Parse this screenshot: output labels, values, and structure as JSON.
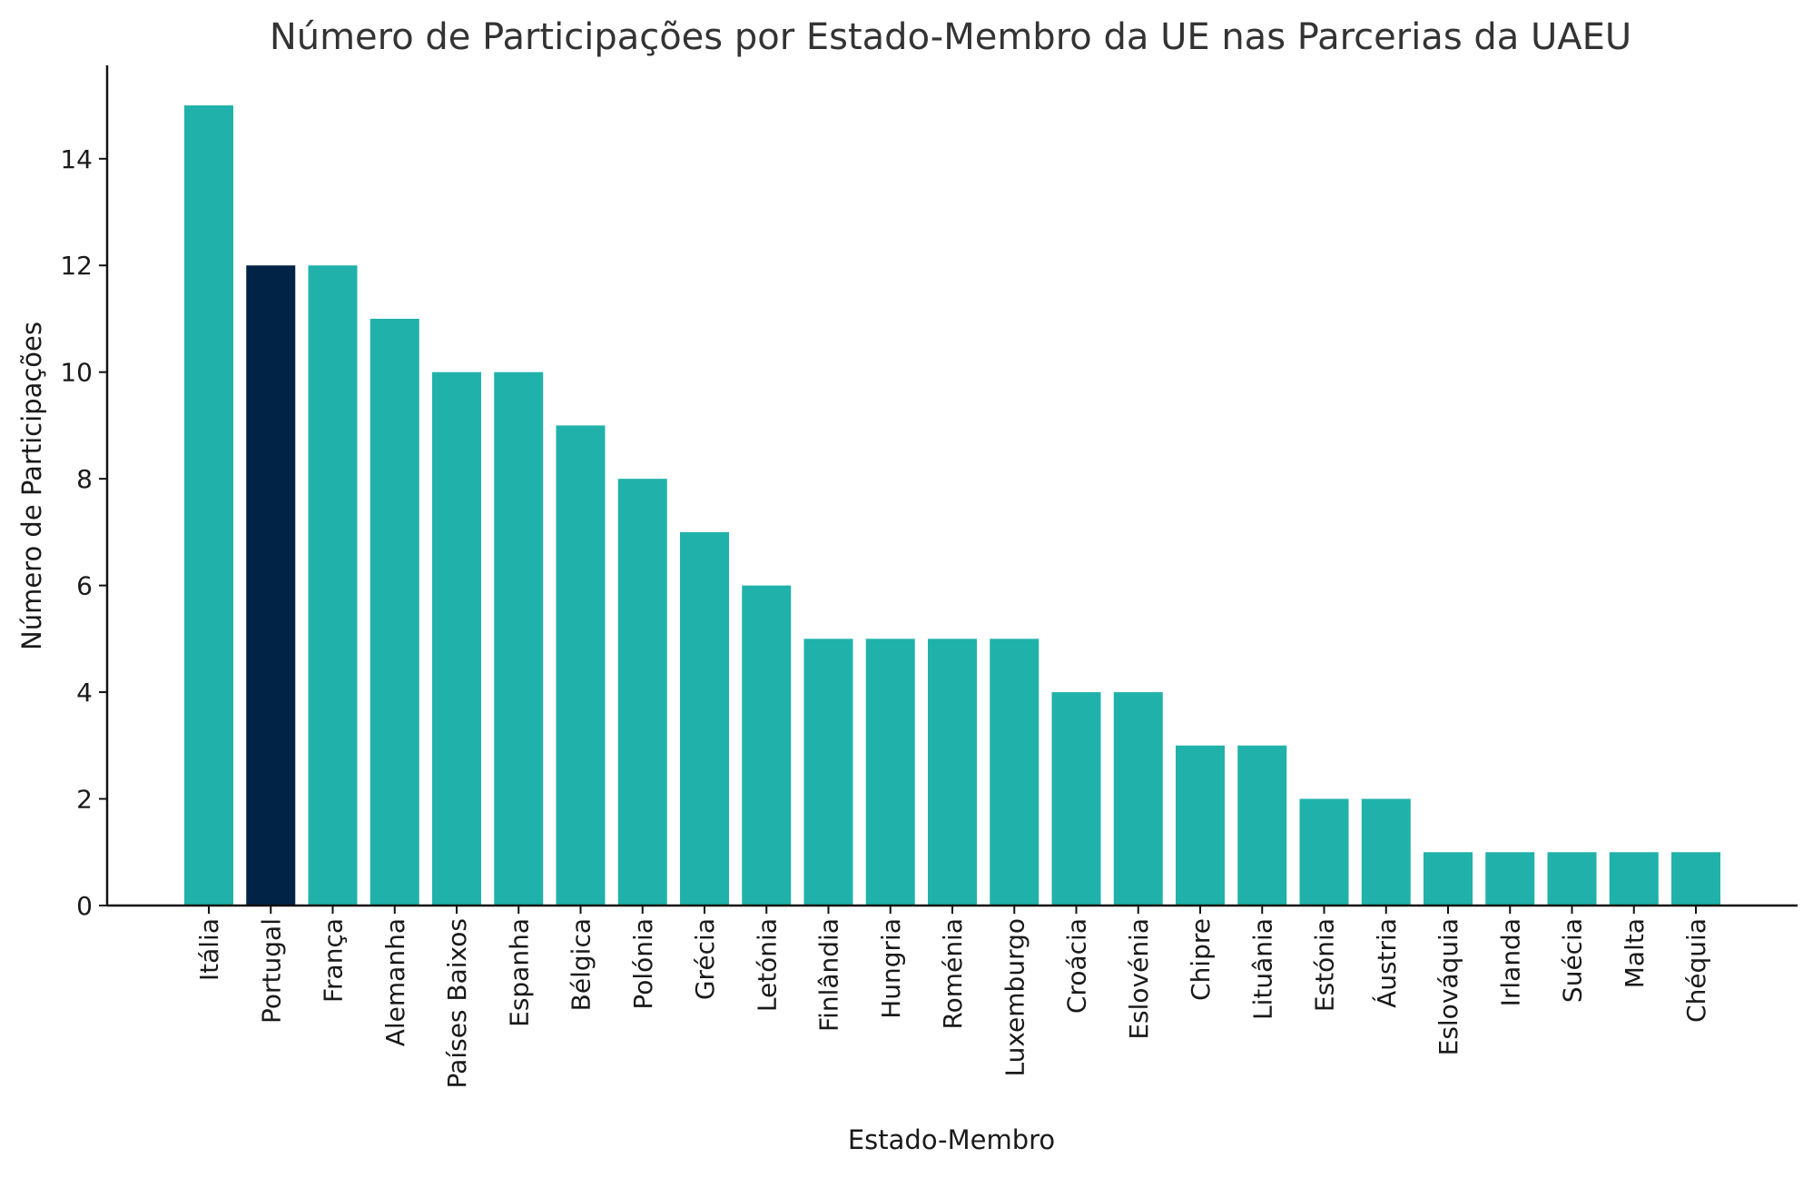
{
  "chart_data": {
    "type": "bar",
    "title": "Número de Participações por Estado-Membro da UE nas Parcerias da UAEU",
    "xlabel": "Estado-Membro",
    "ylabel": "Número de Participações",
    "categories": [
      "Itália",
      "Portugal",
      "França",
      "Alemanha",
      "Países Baixos",
      "Espanha",
      "Bélgica",
      "Polónia",
      "Grécia",
      "Letónia",
      "Finlândia",
      "Hungria",
      "Roménia",
      "Luxemburgo",
      "Croácia",
      "Eslovénia",
      "Chipre",
      "Lituânia",
      "Estónia",
      "Áustria",
      "Eslováquia",
      "Irlanda",
      "Suécia",
      "Malta",
      "Chéquia"
    ],
    "values": [
      15,
      12,
      12,
      11,
      10,
      10,
      9,
      8,
      7,
      6,
      5,
      5,
      5,
      5,
      4,
      4,
      3,
      3,
      2,
      2,
      1,
      1,
      1,
      1,
      1
    ],
    "highlight_category": "Portugal",
    "colors": {
      "default": "#20b2aa",
      "highlight": "#012345"
    },
    "ylim": [
      0,
      15.75
    ],
    "yticks": [
      0,
      2,
      4,
      6,
      8,
      10,
      12,
      14
    ],
    "grid": false,
    "legend": "none"
  }
}
